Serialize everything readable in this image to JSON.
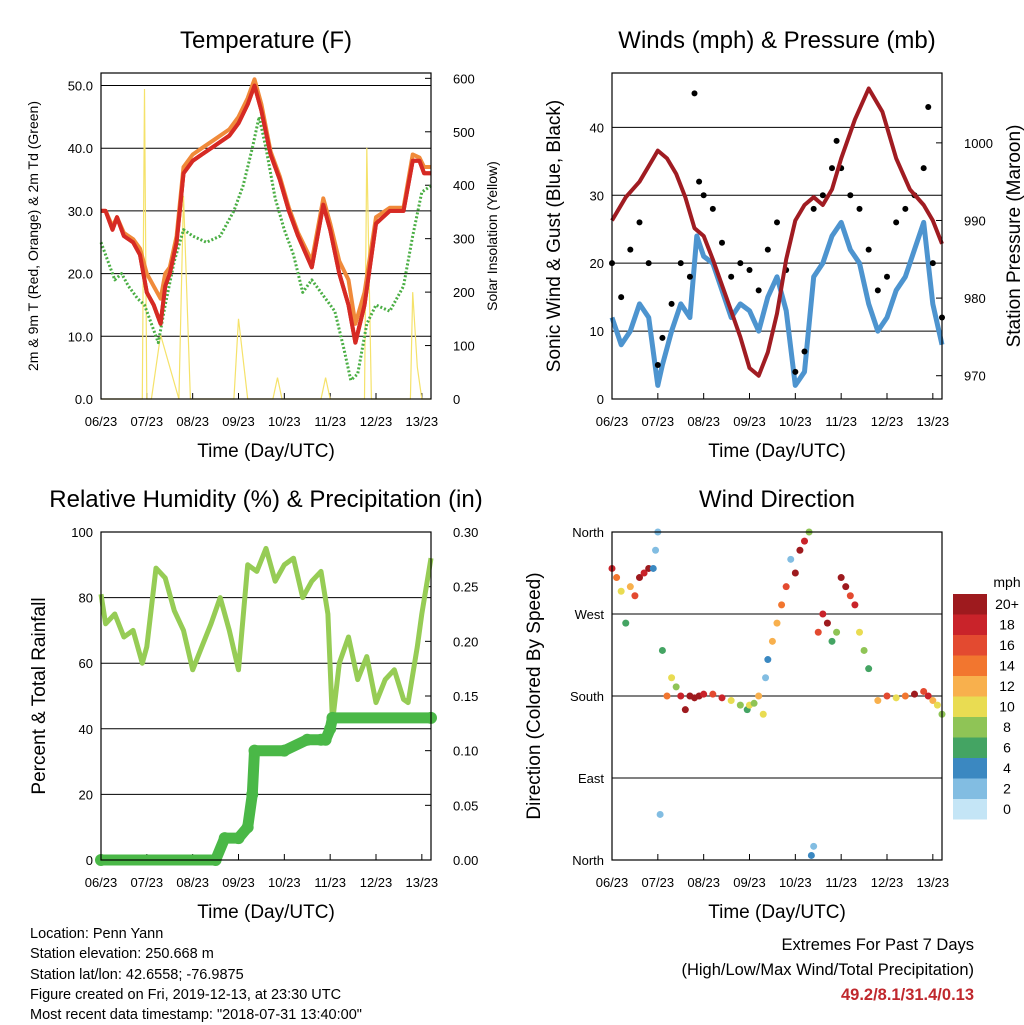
{
  "colors": {
    "temp_red": "#d62a24",
    "temp_orange": "#f08a3a",
    "dewpoint_green": "#4aae44",
    "insolation_yellow": "#f5e26a",
    "wind_blue": "#4d94cf",
    "gust_black": "#000000",
    "pressure_maroon": "#a01c22",
    "rh_lightgreen": "#96cc55",
    "precip_green": "#4ab847",
    "extremes_red": "#c0282d"
  },
  "chart_data": [
    {
      "type": "line",
      "title": "Temperature (F)",
      "xlabel": "Time (Day/UTC)",
      "ylabel": "2m & 9m T (Red, Orange) & 2m Td (Green)",
      "y2label": "Solar Insolation (Yellow)",
      "x_ticks": [
        "06/23",
        "07/23",
        "08/23",
        "09/23",
        "10/23",
        "11/23",
        "12/23",
        "13/23"
      ],
      "ylim": [
        0,
        52
      ],
      "y_ticks": [
        "0.0",
        "10.0",
        "20.0",
        "30.0",
        "40.0",
        "50.0"
      ],
      "y2lim": [
        0,
        610
      ],
      "y2_ticks": [
        "0",
        "100",
        "200",
        "300",
        "400",
        "500",
        "600"
      ],
      "grid": true,
      "series": [
        {
          "key": "t2m",
          "color_key": "temp_red",
          "x": [
            6.0,
            6.1,
            6.25,
            6.35,
            6.5,
            6.7,
            6.85,
            7.0,
            7.15,
            7.3,
            7.4,
            7.5,
            7.65,
            7.8,
            8.0,
            8.2,
            8.5,
            8.8,
            9.0,
            9.2,
            9.35,
            9.5,
            9.7,
            9.9,
            10.1,
            10.3,
            10.6,
            10.85,
            11.0,
            11.2,
            11.4,
            11.55,
            11.75,
            12.0,
            12.3,
            12.6,
            12.8,
            12.95,
            13.05,
            13.2
          ],
          "y": [
            30,
            30,
            27,
            29,
            26,
            25,
            23,
            17,
            15,
            12,
            18,
            20,
            25,
            36,
            38,
            39,
            40.5,
            42,
            44,
            47,
            50,
            46,
            39,
            35,
            30,
            26,
            21,
            31,
            27,
            20,
            15,
            9,
            15,
            28,
            30,
            30,
            38,
            38,
            36,
            36
          ]
        },
        {
          "key": "t9m",
          "color_key": "temp_orange",
          "x": [
            6.0,
            6.1,
            6.25,
            6.35,
            6.5,
            6.7,
            6.85,
            7.0,
            7.15,
            7.3,
            7.4,
            7.5,
            7.65,
            7.8,
            8.0,
            8.2,
            8.5,
            8.8,
            9.0,
            9.2,
            9.35,
            9.5,
            9.7,
            9.9,
            10.1,
            10.3,
            10.6,
            10.85,
            11.0,
            11.2,
            11.4,
            11.55,
            11.75,
            12.0,
            12.3,
            12.6,
            12.8,
            12.95,
            13.05,
            13.2
          ],
          "y": [
            30,
            30,
            27.5,
            29,
            26.5,
            25.5,
            24,
            20,
            18,
            16,
            20,
            21,
            26,
            37,
            39,
            40,
            41.5,
            43,
            45,
            48,
            51,
            47,
            39.5,
            35.5,
            30.5,
            26.5,
            22,
            32,
            28,
            22,
            19,
            12,
            17,
            29,
            30.5,
            30.5,
            39,
            38.5,
            37,
            37
          ]
        },
        {
          "key": "td2m",
          "color_key": "dewpoint_green",
          "x": [
            6.0,
            6.15,
            6.3,
            6.45,
            6.6,
            6.8,
            6.95,
            7.1,
            7.25,
            7.4,
            7.6,
            7.8,
            8.0,
            8.3,
            8.6,
            8.9,
            9.1,
            9.3,
            9.45,
            9.6,
            9.8,
            10.0,
            10.2,
            10.4,
            10.6,
            10.9,
            11.1,
            11.3,
            11.45,
            11.6,
            11.8,
            12.0,
            12.3,
            12.6,
            12.8,
            13.0,
            13.2
          ],
          "y": [
            25,
            22,
            19,
            20,
            18,
            16,
            15,
            12,
            9,
            15,
            22,
            27,
            26,
            25,
            26,
            30,
            34,
            40,
            45,
            40,
            32,
            27,
            23,
            17,
            19,
            16,
            14,
            8,
            3,
            4,
            12,
            15,
            14,
            18,
            26,
            33,
            34
          ]
        }
      ],
      "insolation": {
        "x": [
          6.0,
          6.9,
          6.95,
          7.0,
          7.1,
          7.3,
          7.7,
          7.8,
          7.95,
          8.6,
          8.9,
          9.0,
          9.2,
          9.75,
          9.85,
          9.95,
          10.4,
          10.8,
          10.9,
          11.0,
          11.75,
          11.8,
          11.9,
          12.05,
          12.75,
          12.8,
          12.9,
          13.0,
          13.2
        ],
        "y": [
          0,
          0,
          580,
          0,
          0,
          120,
          0,
          380,
          0,
          0,
          0,
          150,
          0,
          0,
          40,
          0,
          0,
          0,
          40,
          0,
          0,
          470,
          0,
          0,
          0,
          200,
          60,
          0,
          0
        ]
      }
    },
    {
      "type": "scatter",
      "title": "Winds (mph) & Pressure (mb)",
      "xlabel": "Time (Day/UTC)",
      "ylabel": "Sonic Wind & Gust (Blue, Black)",
      "y2label": "Station Pressure (Maroon)",
      "x_ticks": [
        "06/23",
        "07/23",
        "08/23",
        "09/23",
        "10/23",
        "11/23",
        "12/23",
        "13/23"
      ],
      "ylim": [
        0,
        48
      ],
      "y_ticks": [
        "0",
        "10",
        "20",
        "30",
        "40"
      ],
      "y2lim": [
        967,
        1009
      ],
      "y2_ticks": [
        "970",
        "980",
        "990",
        "1000"
      ],
      "grid": true,
      "wind_blue": {
        "x": [
          6.0,
          6.2,
          6.4,
          6.6,
          6.8,
          7.0,
          7.1,
          7.3,
          7.5,
          7.7,
          7.85,
          8.0,
          8.2,
          8.4,
          8.6,
          8.8,
          9.0,
          9.2,
          9.4,
          9.6,
          9.8,
          10.0,
          10.2,
          10.4,
          10.6,
          10.8,
          11.0,
          11.2,
          11.4,
          11.6,
          11.8,
          12.0,
          12.2,
          12.4,
          12.6,
          12.8,
          13.0,
          13.2
        ],
        "y": [
          12,
          8,
          10,
          14,
          12,
          2,
          5,
          10,
          14,
          12,
          24,
          21,
          20,
          16,
          12,
          14,
          13,
          10,
          15,
          18,
          13,
          2,
          4,
          18,
          20,
          24,
          26,
          22,
          20,
          14,
          10,
          12,
          16,
          18,
          22,
          26,
          14,
          8
        ]
      },
      "gust_black": {
        "x": [
          6.0,
          6.2,
          6.4,
          6.6,
          6.8,
          7.0,
          7.1,
          7.3,
          7.5,
          7.7,
          7.8,
          7.9,
          8.0,
          8.2,
          8.4,
          8.6,
          8.8,
          9.0,
          9.2,
          9.4,
          9.6,
          9.8,
          10.0,
          10.2,
          10.4,
          10.6,
          10.8,
          10.9,
          11.0,
          11.2,
          11.4,
          11.6,
          11.8,
          12.0,
          12.2,
          12.4,
          12.6,
          12.8,
          12.9,
          13.0,
          13.2
        ],
        "y": [
          20,
          15,
          22,
          26,
          20,
          5,
          9,
          14,
          20,
          18,
          45,
          32,
          30,
          28,
          23,
          18,
          20,
          19,
          16,
          22,
          26,
          19,
          4,
          7,
          28,
          30,
          34,
          38,
          34,
          30,
          28,
          22,
          16,
          18,
          26,
          28,
          30,
          34,
          43,
          20,
          12
        ]
      },
      "pressure": {
        "x": [
          6.0,
          6.3,
          6.6,
          6.9,
          7.0,
          7.2,
          7.4,
          7.6,
          7.8,
          8.0,
          8.2,
          8.5,
          8.8,
          9.0,
          9.2,
          9.4,
          9.6,
          9.8,
          10.0,
          10.2,
          10.4,
          10.6,
          10.8,
          11.0,
          11.3,
          11.6,
          11.9,
          12.2,
          12.5,
          12.8,
          13.0,
          13.2
        ],
        "y": [
          990,
          993,
          995,
          998,
          999,
          998,
          996,
          993,
          989,
          988,
          985,
          980,
          975,
          971,
          970,
          973,
          978,
          985,
          990,
          992,
          993,
          992,
          994,
          998,
          1003,
          1007,
          1004,
          998,
          994,
          992,
          990,
          987
        ]
      }
    },
    {
      "type": "line",
      "title": "Relative Humidity (%) & Precipitation (in)",
      "xlabel": "Time (Day/UTC)",
      "ylabel": "Percent & Total Rainfall",
      "x_ticks": [
        "06/23",
        "07/23",
        "08/23",
        "09/23",
        "10/23",
        "11/23",
        "12/23",
        "13/23"
      ],
      "ylim": [
        0,
        100
      ],
      "y_ticks": [
        "0",
        "20",
        "40",
        "60",
        "80",
        "100"
      ],
      "y2lim": [
        0,
        0.3
      ],
      "y2_ticks": [
        "0.00",
        "0.05",
        "0.10",
        "0.15",
        "0.20",
        "0.25",
        "0.30"
      ],
      "grid": true,
      "series": [
        {
          "key": "rh",
          "color_key": "rh_lightgreen",
          "x": [
            6.0,
            6.1,
            6.3,
            6.5,
            6.7,
            6.9,
            7.0,
            7.2,
            7.4,
            7.6,
            7.8,
            8.0,
            8.2,
            8.4,
            8.6,
            8.8,
            9.0,
            9.2,
            9.4,
            9.6,
            9.8,
            10.0,
            10.2,
            10.4,
            10.6,
            10.8,
            10.95,
            11.05,
            11.2,
            11.4,
            11.6,
            11.8,
            12.0,
            12.2,
            12.4,
            12.6,
            12.7,
            12.9,
            13.0,
            13.2
          ],
          "y": [
            81,
            72,
            75,
            68,
            70,
            60,
            65,
            89,
            86,
            76,
            70,
            58,
            65,
            72,
            80,
            70,
            58,
            90,
            88,
            95,
            85,
            90,
            92,
            80,
            85,
            88,
            75,
            42,
            60,
            68,
            55,
            62,
            48,
            55,
            58,
            49,
            48,
            65,
            75,
            92
          ]
        },
        {
          "key": "precip",
          "color_key": "precip_green",
          "x": [
            6.0,
            8.5,
            8.7,
            9.0,
            9.2,
            9.3,
            9.35,
            10.0,
            10.5,
            10.8,
            10.9,
            11.0,
            11.05,
            13.2
          ],
          "y": [
            0.0,
            0.0,
            0.02,
            0.02,
            0.03,
            0.06,
            0.1,
            0.1,
            0.11,
            0.11,
            0.11,
            0.12,
            0.13,
            0.13
          ]
        }
      ]
    },
    {
      "type": "scatter",
      "title": "Wind Direction",
      "xlabel": "Time (Day/UTC)",
      "ylabel": "Direction (Colored By Speed)",
      "x_ticks": [
        "06/23",
        "07/23",
        "08/23",
        "09/23",
        "10/23",
        "11/23",
        "12/23",
        "13/23"
      ],
      "y_ticks": [
        "North",
        "East",
        "South",
        "West",
        "North"
      ],
      "ylim": [
        0,
        360
      ],
      "grid": true,
      "points": {
        "x": [
          6.0,
          6.1,
          6.2,
          6.3,
          6.4,
          6.5,
          6.6,
          6.7,
          6.8,
          6.9,
          6.95,
          7.0,
          7.05,
          7.1,
          7.2,
          7.3,
          7.4,
          7.5,
          7.6,
          7.7,
          7.8,
          7.9,
          8.0,
          8.2,
          8.4,
          8.6,
          8.8,
          8.95,
          9.0,
          9.1,
          9.2,
          9.3,
          9.35,
          9.4,
          9.5,
          9.6,
          9.7,
          9.8,
          9.9,
          10.0,
          10.1,
          10.2,
          10.3,
          10.35,
          10.4,
          10.5,
          10.6,
          10.7,
          10.8,
          10.9,
          11.0,
          11.1,
          11.2,
          11.3,
          11.4,
          11.5,
          11.6,
          11.8,
          12.0,
          12.2,
          12.4,
          12.6,
          12.8,
          12.9,
          13.0,
          13.1,
          13.2
        ],
        "y": [
          320,
          310,
          295,
          260,
          300,
          290,
          310,
          315,
          320,
          320,
          340,
          360,
          50,
          230,
          180,
          200,
          190,
          180,
          165,
          180,
          178,
          180,
          182,
          182,
          178,
          175,
          170,
          165,
          170,
          172,
          180,
          160,
          200,
          220,
          240,
          260,
          280,
          300,
          330,
          315,
          340,
          350,
          360,
          5,
          15,
          250,
          270,
          260,
          240,
          250,
          310,
          300,
          290,
          280,
          250,
          230,
          210,
          175,
          180,
          178,
          180,
          182,
          185,
          180,
          175,
          170,
          160
        ],
        "speed": [
          18,
          14,
          10,
          6,
          12,
          16,
          20,
          18,
          20,
          4,
          2,
          2,
          2,
          6,
          14,
          10,
          8,
          18,
          20,
          20,
          20,
          20,
          18,
          16,
          18,
          10,
          8,
          6,
          10,
          8,
          12,
          10,
          2,
          4,
          12,
          12,
          14,
          16,
          2,
          20,
          20,
          18,
          8,
          4,
          2,
          16,
          18,
          20,
          6,
          8,
          20,
          20,
          16,
          18,
          10,
          8,
          6,
          12,
          16,
          10,
          14,
          20,
          16,
          18,
          12,
          10,
          8
        ]
      },
      "legend": {
        "title": "mph",
        "labels": [
          "20+",
          "18",
          "16",
          "14",
          "12",
          "10",
          "8",
          "6",
          "4",
          "2",
          "0"
        ],
        "colors": [
          "#9e1a1e",
          "#c9232a",
          "#e34a30",
          "#f2762f",
          "#f8b04d",
          "#e9dc52",
          "#8fc456",
          "#44a463",
          "#3b88c1",
          "#82bde2",
          "#c4e5f6"
        ]
      }
    }
  ],
  "info": {
    "location": "Location: Penn Yann",
    "elevation": "Station elevation: 250.668 m",
    "latlon": "Station lat/lon: 42.6558; -76.9875",
    "created": "Figure created on Fri, 2019-12-13, at 23:30 UTC",
    "recent": "Most recent data timestamp: \"2018-07-31 13:40:00\""
  },
  "extremes": {
    "title": "Extremes For Past 7 Days",
    "subtitle": "(High/Low/Max Wind/Total Precipitation)",
    "values": "49.2/8.1/31.4/0.13"
  }
}
